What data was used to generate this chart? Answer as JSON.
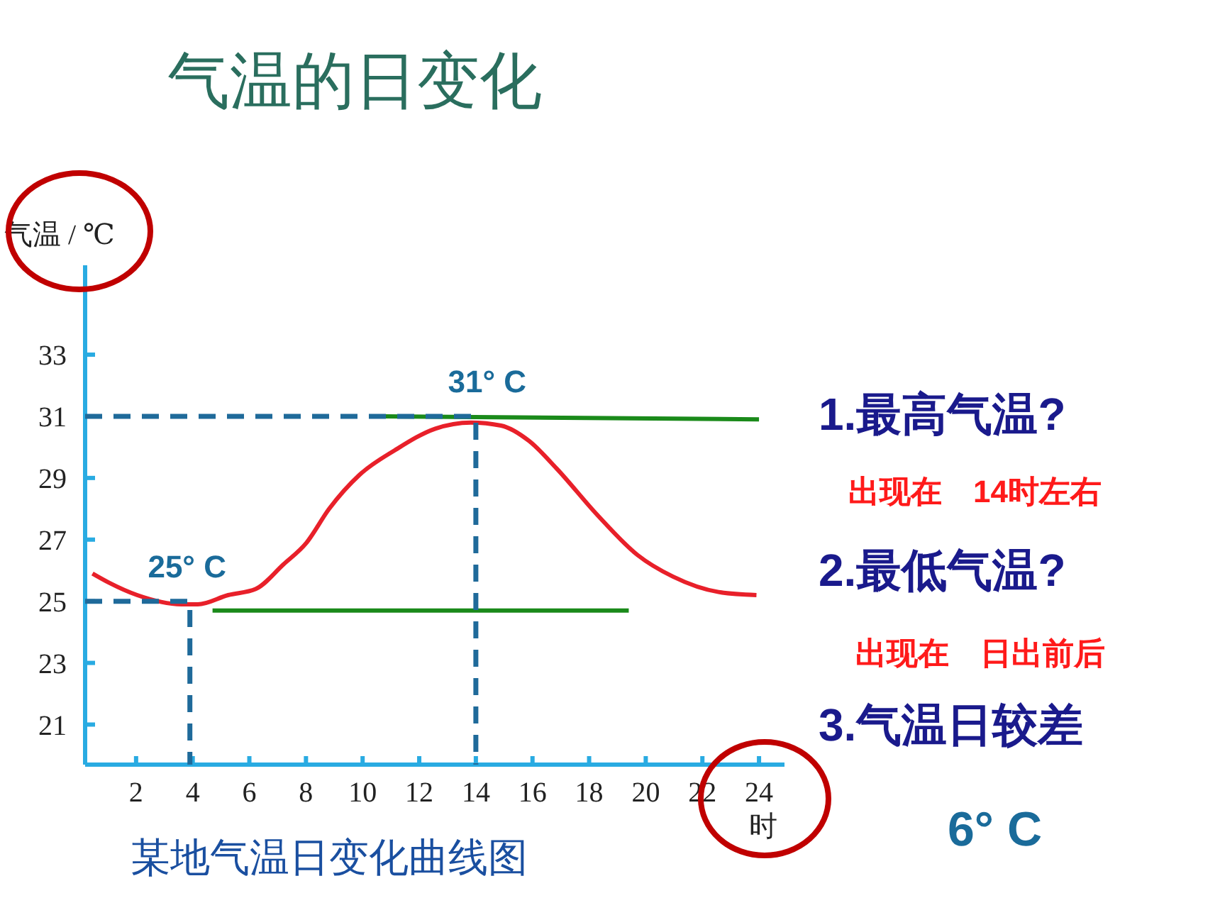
{
  "chart_data": {
    "type": "line",
    "title": "气温的日变化",
    "ylabel": "气温 / ℃",
    "xlabel": "时",
    "xlim": [
      0.2,
      24.9
    ],
    "ylim": [
      19.7,
      35.9
    ],
    "xticks": [
      2,
      4,
      6,
      8,
      10,
      12,
      14,
      16,
      18,
      20,
      22,
      24
    ],
    "yticks": [
      21,
      23,
      25,
      27,
      29,
      31,
      33
    ],
    "grid": false,
    "marker": "none",
    "series": [
      {
        "color": "#e8202a",
        "line_style": "solid",
        "x": [
          0.46,
          1.05,
          2.04,
          3.64,
          4.18,
          5.25,
          6.23,
          7.21,
          8.02,
          8.82,
          9.89,
          11.14,
          12.57,
          13.82,
          14.89,
          15.88,
          16.86,
          18.29,
          19.71,
          20.96,
          22.57,
          23.91
        ],
        "values": [
          25.9,
          25.6,
          25.2,
          24.9,
          24.9,
          25.2,
          25.4,
          26.2,
          26.9,
          28.0,
          29.1,
          29.9,
          30.6,
          30.8,
          30.7,
          30.2,
          29.3,
          27.8,
          26.5,
          25.8,
          25.3,
          25.2
        ]
      },
      {
        "color": "#1a8a1a",
        "line_style": "solid",
        "x": [
          10.8,
          24
        ],
        "values": [
          31.0,
          30.9
        ]
      },
      {
        "color": "#1a8a1a",
        "line_style": "solid",
        "x": [
          4.7,
          19.4
        ],
        "values": [
          24.7,
          24.7
        ]
      },
      {
        "color": "#1f6a9a",
        "line_style": "dashed",
        "x": [
          0.2,
          14,
          14
        ],
        "values": [
          31,
          31,
          19.7
        ]
      },
      {
        "color": "#1f6a9a",
        "line_style": "dashed",
        "x": [
          0.2,
          3.9,
          3.9
        ],
        "values": [
          25,
          25,
          19.7
        ]
      }
    ],
    "annotations": [
      {
        "text": "31° C",
        "x": 14,
        "y": 31
      },
      {
        "text": "25° C",
        "x": 4,
        "y": 25
      },
      "1.最高气温?",
      "出现在　14时左右",
      "2.最低气温?",
      "出现在　日出前后",
      "3.气温日较差",
      "6° C",
      "某地气温日变化曲线图"
    ]
  }
}
